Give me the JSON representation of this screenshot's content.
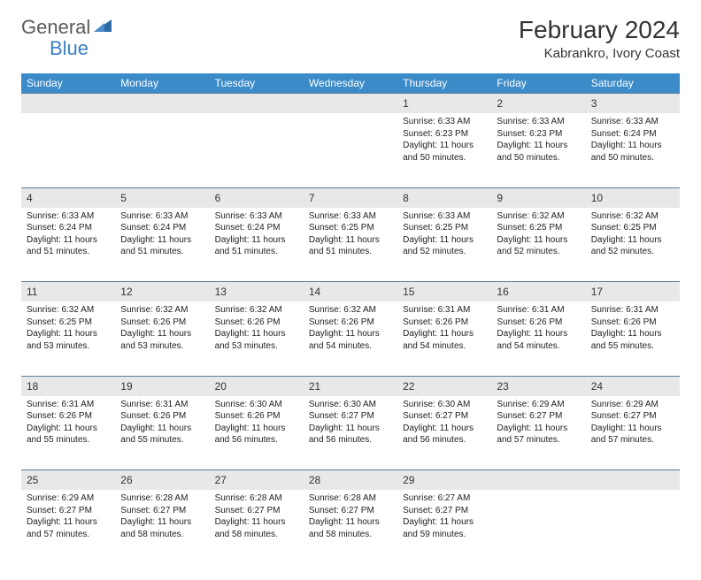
{
  "branding": {
    "word1": "General",
    "word2": "Blue",
    "word1_color": "#5a5a5a",
    "word2_color": "#3b7fc4",
    "icon_color": "#2d6aa3"
  },
  "title": {
    "month_year": "February 2024",
    "location": "Kabrankro, Ivory Coast"
  },
  "styling": {
    "header_bg": "#3b8bc9",
    "header_text": "#ffffff",
    "daynum_bg": "#e8e8e8",
    "daynum_border": "#5a7a9a",
    "body_text": "#222222",
    "page_bg": "#ffffff",
    "cell_font_size": 10,
    "header_font_size": 12,
    "title_font_size": 28,
    "location_font_size": 15
  },
  "weekdays": [
    "Sunday",
    "Monday",
    "Tuesday",
    "Wednesday",
    "Thursday",
    "Friday",
    "Saturday"
  ],
  "weeks": [
    [
      null,
      null,
      null,
      null,
      {
        "n": "1",
        "sr": "6:33 AM",
        "ss": "6:23 PM",
        "dl": "11 hours and 50 minutes."
      },
      {
        "n": "2",
        "sr": "6:33 AM",
        "ss": "6:23 PM",
        "dl": "11 hours and 50 minutes."
      },
      {
        "n": "3",
        "sr": "6:33 AM",
        "ss": "6:24 PM",
        "dl": "11 hours and 50 minutes."
      }
    ],
    [
      {
        "n": "4",
        "sr": "6:33 AM",
        "ss": "6:24 PM",
        "dl": "11 hours and 51 minutes."
      },
      {
        "n": "5",
        "sr": "6:33 AM",
        "ss": "6:24 PM",
        "dl": "11 hours and 51 minutes."
      },
      {
        "n": "6",
        "sr": "6:33 AM",
        "ss": "6:24 PM",
        "dl": "11 hours and 51 minutes."
      },
      {
        "n": "7",
        "sr": "6:33 AM",
        "ss": "6:25 PM",
        "dl": "11 hours and 51 minutes."
      },
      {
        "n": "8",
        "sr": "6:33 AM",
        "ss": "6:25 PM",
        "dl": "11 hours and 52 minutes."
      },
      {
        "n": "9",
        "sr": "6:32 AM",
        "ss": "6:25 PM",
        "dl": "11 hours and 52 minutes."
      },
      {
        "n": "10",
        "sr": "6:32 AM",
        "ss": "6:25 PM",
        "dl": "11 hours and 52 minutes."
      }
    ],
    [
      {
        "n": "11",
        "sr": "6:32 AM",
        "ss": "6:25 PM",
        "dl": "11 hours and 53 minutes."
      },
      {
        "n": "12",
        "sr": "6:32 AM",
        "ss": "6:26 PM",
        "dl": "11 hours and 53 minutes."
      },
      {
        "n": "13",
        "sr": "6:32 AM",
        "ss": "6:26 PM",
        "dl": "11 hours and 53 minutes."
      },
      {
        "n": "14",
        "sr": "6:32 AM",
        "ss": "6:26 PM",
        "dl": "11 hours and 54 minutes."
      },
      {
        "n": "15",
        "sr": "6:31 AM",
        "ss": "6:26 PM",
        "dl": "11 hours and 54 minutes."
      },
      {
        "n": "16",
        "sr": "6:31 AM",
        "ss": "6:26 PM",
        "dl": "11 hours and 54 minutes."
      },
      {
        "n": "17",
        "sr": "6:31 AM",
        "ss": "6:26 PM",
        "dl": "11 hours and 55 minutes."
      }
    ],
    [
      {
        "n": "18",
        "sr": "6:31 AM",
        "ss": "6:26 PM",
        "dl": "11 hours and 55 minutes."
      },
      {
        "n": "19",
        "sr": "6:31 AM",
        "ss": "6:26 PM",
        "dl": "11 hours and 55 minutes."
      },
      {
        "n": "20",
        "sr": "6:30 AM",
        "ss": "6:26 PM",
        "dl": "11 hours and 56 minutes."
      },
      {
        "n": "21",
        "sr": "6:30 AM",
        "ss": "6:27 PM",
        "dl": "11 hours and 56 minutes."
      },
      {
        "n": "22",
        "sr": "6:30 AM",
        "ss": "6:27 PM",
        "dl": "11 hours and 56 minutes."
      },
      {
        "n": "23",
        "sr": "6:29 AM",
        "ss": "6:27 PM",
        "dl": "11 hours and 57 minutes."
      },
      {
        "n": "24",
        "sr": "6:29 AM",
        "ss": "6:27 PM",
        "dl": "11 hours and 57 minutes."
      }
    ],
    [
      {
        "n": "25",
        "sr": "6:29 AM",
        "ss": "6:27 PM",
        "dl": "11 hours and 57 minutes."
      },
      {
        "n": "26",
        "sr": "6:28 AM",
        "ss": "6:27 PM",
        "dl": "11 hours and 58 minutes."
      },
      {
        "n": "27",
        "sr": "6:28 AM",
        "ss": "6:27 PM",
        "dl": "11 hours and 58 minutes."
      },
      {
        "n": "28",
        "sr": "6:28 AM",
        "ss": "6:27 PM",
        "dl": "11 hours and 58 minutes."
      },
      {
        "n": "29",
        "sr": "6:27 AM",
        "ss": "6:27 PM",
        "dl": "11 hours and 59 minutes."
      },
      null,
      null
    ]
  ],
  "labels": {
    "sunrise": "Sunrise:",
    "sunset": "Sunset:",
    "daylight": "Daylight:"
  }
}
